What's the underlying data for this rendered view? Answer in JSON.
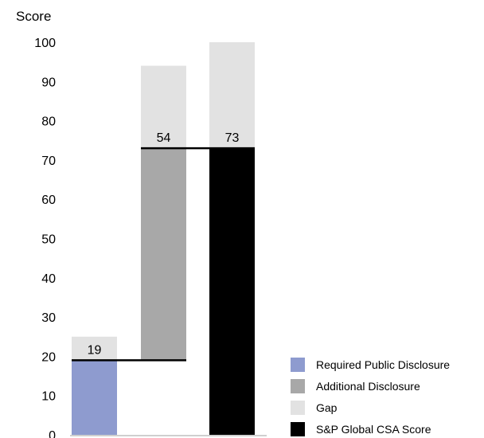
{
  "chart_data": {
    "type": "bar",
    "subtype": "waterfall",
    "ylabel": "Score",
    "ylim": [
      0,
      100
    ],
    "yticks": [
      0,
      10,
      20,
      30,
      40,
      50,
      60,
      70,
      80,
      90,
      100
    ],
    "grid": false,
    "legend_position": "bottom-right",
    "bars": [
      {
        "series": "Required Public Disclosure",
        "base": 0,
        "value": 19,
        "gap_top": 25,
        "label": "19"
      },
      {
        "series": "Additional Disclosure",
        "base": 19,
        "value": 73,
        "gap_top": 94,
        "label": "54"
      },
      {
        "series": "S&P Global CSA Score",
        "base": 0,
        "value": 73,
        "gap_top": 100,
        "label": "73"
      }
    ],
    "connectors": [
      19,
      73
    ],
    "legend": [
      {
        "name": "Required Public Disclosure",
        "color": "#8e9bcf"
      },
      {
        "name": "Additional Disclosure",
        "color": "#a8a8a8"
      },
      {
        "name": "Gap",
        "color": "#e2e2e2"
      },
      {
        "name": "S&P Global CSA Score",
        "color": "#000000"
      }
    ]
  }
}
